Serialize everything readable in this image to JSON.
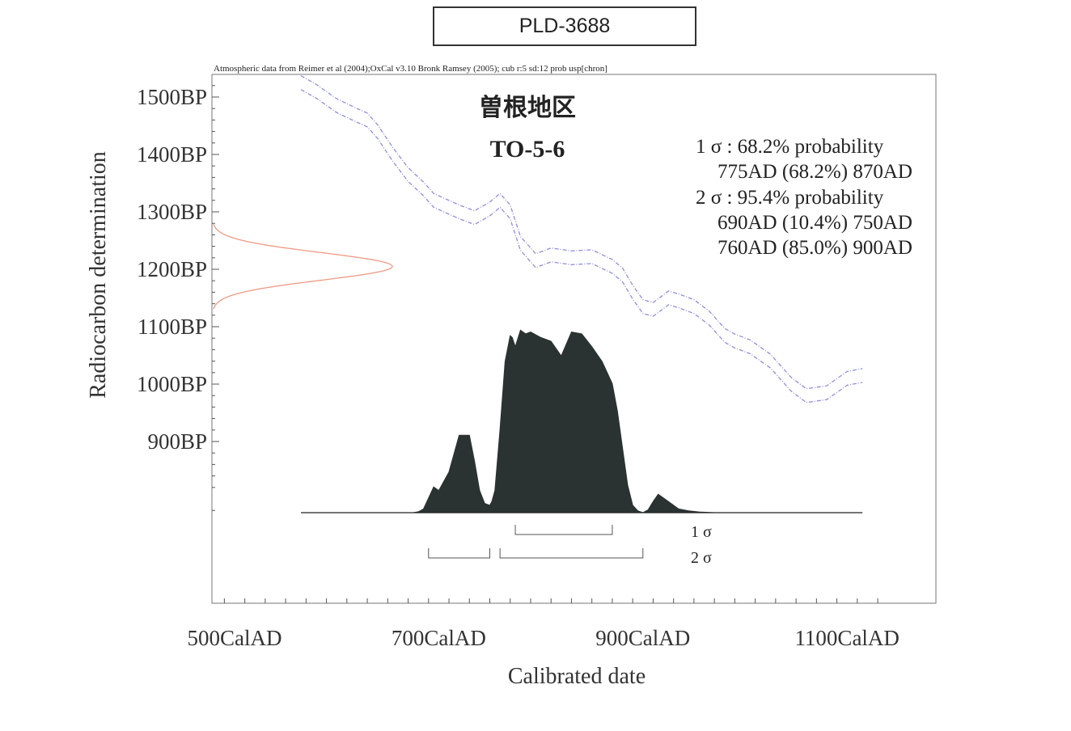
{
  "sample_label": "PLD-3688",
  "source_note": "Atmospheric data from Reimer et al (2004);OxCal v3.10 Bronk Ramsey (2005); cub r:5 sd:12 prob usp[chron]",
  "site_name": "曽根地区",
  "sample_code": "TO-5-6",
  "probabilities": {
    "sigma1_header": "1 σ  : 68.2% probability",
    "sigma1_range1": "775AD (68.2%) 870AD",
    "sigma2_header": "2 σ  : 95.4% probability",
    "sigma2_range1": "690AD (10.4%) 750AD",
    "sigma2_range2": "760AD (85.0%) 900AD"
  },
  "sigma_labels": {
    "one": "1 σ",
    "two": "2 σ"
  },
  "colors": {
    "curve": "#8f8fdd",
    "radiocarbon": "#ee9a86",
    "posterior": "#2a3232",
    "axis": "#555555"
  },
  "chart_data": {
    "type": "area",
    "xlabel": "Calibrated date",
    "ylabel": "Radiocarbon determination",
    "xlim": [
      490,
      1130
    ],
    "ylim": [
      780,
      1530
    ],
    "x_ticks": [
      {
        "value": 500,
        "label": "500CalAD"
      },
      {
        "value": 700,
        "label": "700CalAD"
      },
      {
        "value": 900,
        "label": "900CalAD"
      },
      {
        "value": 1100,
        "label": "1100CalAD"
      }
    ],
    "y_ticks": [
      {
        "value": 1500,
        "label": "1500BP"
      },
      {
        "value": 1400,
        "label": "1400BP"
      },
      {
        "value": 1300,
        "label": "1300BP"
      },
      {
        "value": 1200,
        "label": "1200BP"
      },
      {
        "value": 1100,
        "label": "1100BP"
      },
      {
        "value": 1000,
        "label": "1000BP"
      },
      {
        "value": 900,
        "label": "900BP"
      }
    ],
    "calibration_curve": {
      "x": [
        565,
        580,
        600,
        620,
        630,
        640,
        655,
        670,
        685,
        695,
        720,
        735,
        750,
        760,
        770,
        780,
        795,
        810,
        830,
        850,
        870,
        880,
        890,
        900,
        910,
        925,
        935,
        950,
        965,
        980,
        990,
        1005,
        1025,
        1045,
        1060,
        1080,
        1100,
        1115
      ],
      "mean": [
        1525,
        1510,
        1485,
        1468,
        1460,
        1440,
        1400,
        1365,
        1340,
        1320,
        1300,
        1290,
        1305,
        1320,
        1300,
        1245,
        1215,
        1225,
        1220,
        1222,
        1205,
        1190,
        1160,
        1135,
        1130,
        1150,
        1145,
        1135,
        1115,
        1085,
        1075,
        1065,
        1040,
        1000,
        980,
        985,
        1010,
        1015
      ],
      "halfwidth": 12
    },
    "radiocarbon_date": {
      "mean": 1205,
      "sd": 24
    },
    "posterior": {
      "x": [
        565,
        675,
        680,
        685,
        690,
        695,
        700,
        710,
        720,
        730,
        735,
        740,
        745,
        750,
        752,
        755,
        760,
        765,
        770,
        772,
        775,
        780,
        785,
        790,
        800,
        810,
        820,
        830,
        840,
        850,
        860,
        870,
        875,
        880,
        885,
        890,
        895,
        900,
        905,
        910,
        915,
        925,
        935,
        945,
        955,
        970,
        1115
      ],
      "density": [
        0,
        0,
        0.005,
        0.02,
        0.08,
        0.14,
        0.12,
        0.22,
        0.42,
        0.42,
        0.28,
        0.12,
        0.05,
        0.04,
        0.06,
        0.12,
        0.45,
        0.82,
        0.96,
        0.95,
        0.9,
        0.99,
        0.97,
        0.98,
        0.95,
        0.93,
        0.85,
        0.98,
        0.97,
        0.9,
        0.82,
        0.7,
        0.55,
        0.35,
        0.15,
        0.04,
        0.01,
        0.0,
        0.015,
        0.06,
        0.1,
        0.06,
        0.02,
        0.01,
        0.004,
        0,
        0
      ]
    },
    "ranges": {
      "sigma1": [
        [
          775,
          870
        ]
      ],
      "sigma2": [
        [
          690,
          750
        ],
        [
          760,
          900
        ]
      ]
    }
  }
}
